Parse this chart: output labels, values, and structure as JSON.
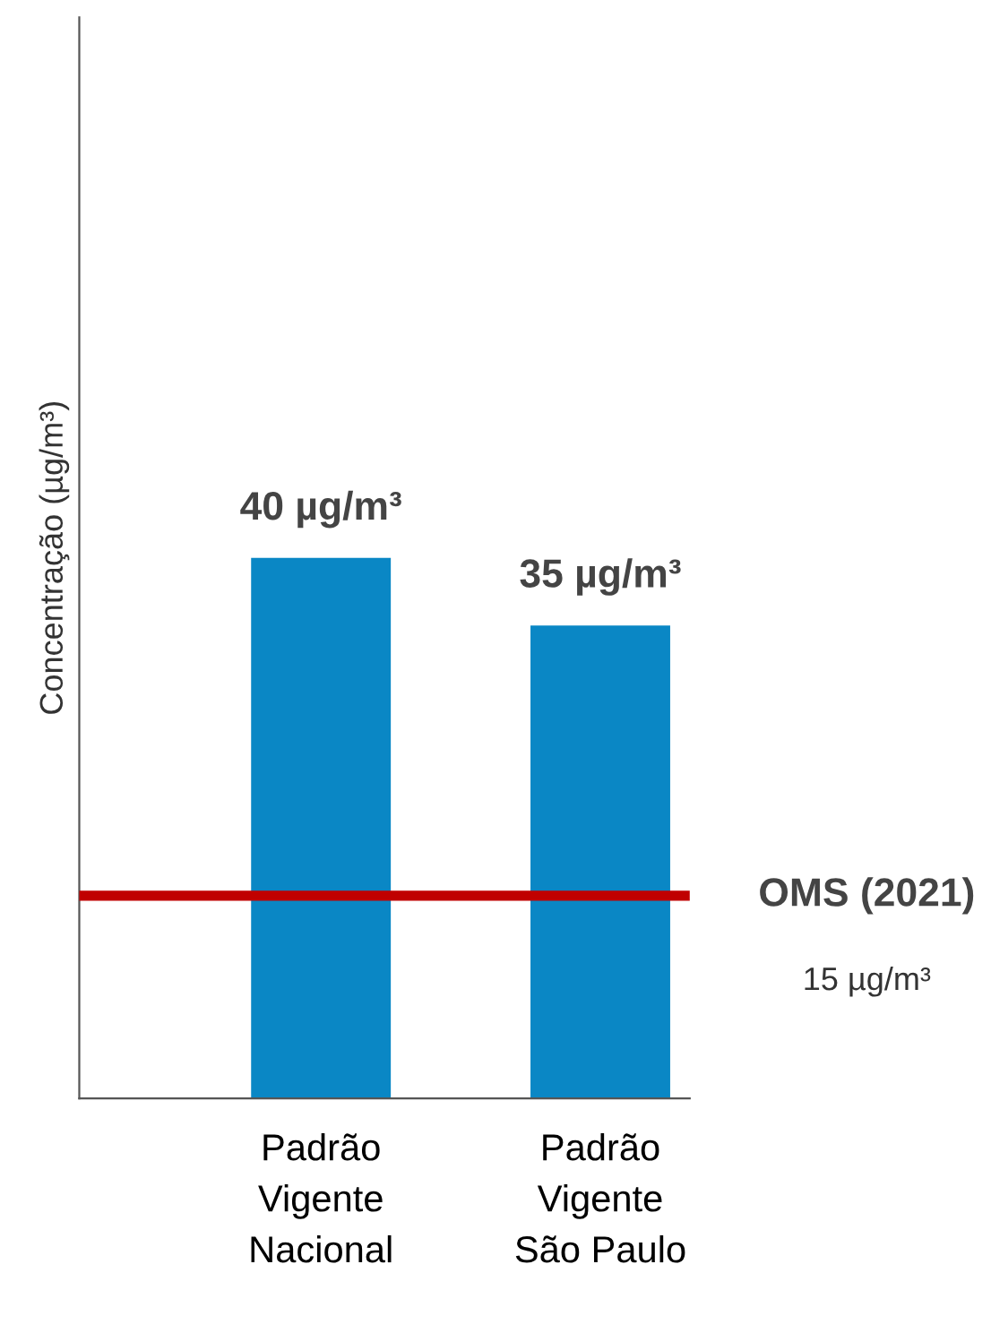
{
  "chart_data": {
    "type": "bar",
    "ylabel": "Concentração (µg/m³)",
    "categories": [
      "Padrão\nVigente\nNacional",
      "Padrão\nVigente\nSão Paulo"
    ],
    "values": [
      40,
      35
    ],
    "color": "#0a87c5",
    "value_labels": [
      "40 µg/m³",
      "35 µg/m³"
    ],
    "ylim": [
      0,
      80
    ],
    "tick_labels": "x",
    "grid": false,
    "legend": false,
    "ref_lines": [
      {
        "axis": "y",
        "value": 15,
        "label": "OMS (2021)",
        "color": "#c00000"
      }
    ],
    "annotations": [
      "15 µg/m³"
    ]
  }
}
